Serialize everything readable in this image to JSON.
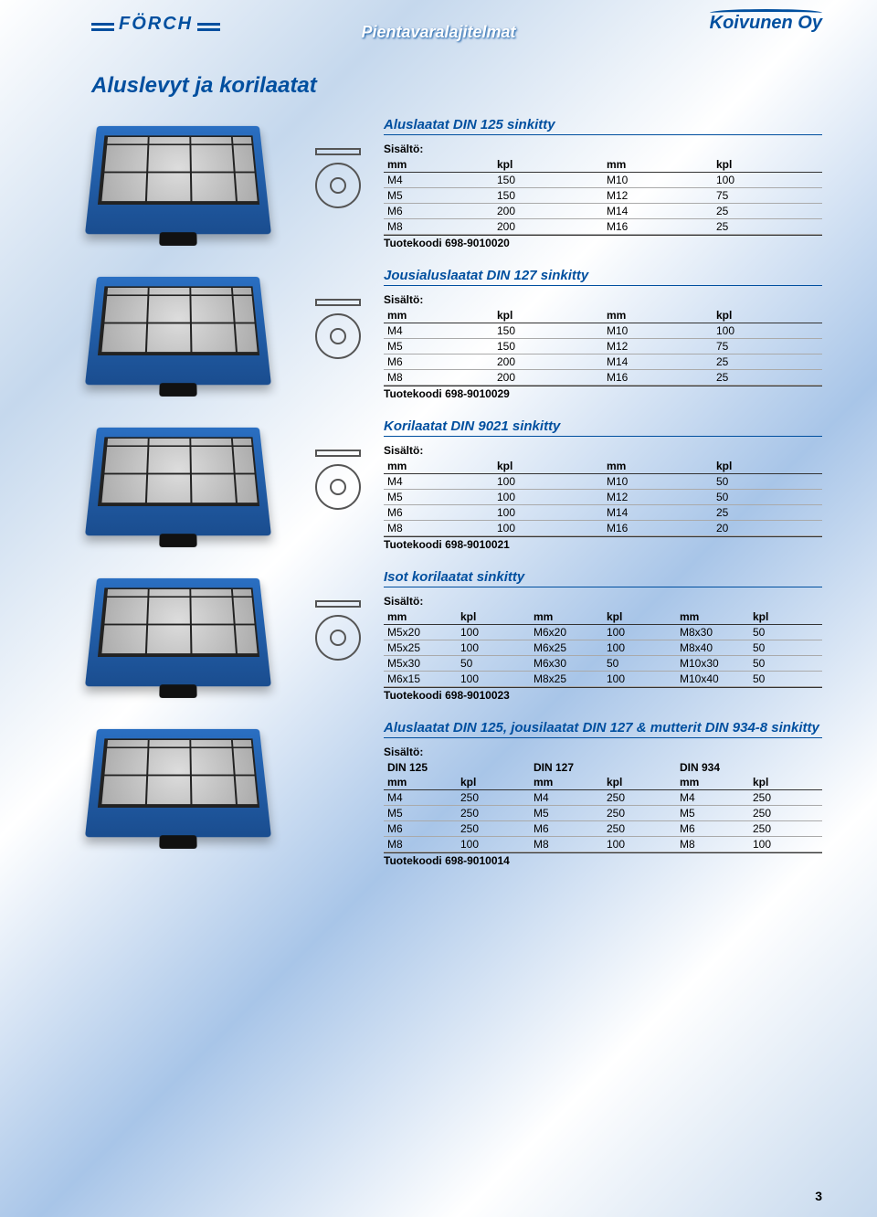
{
  "header": {
    "logo_left": "FÖRCH",
    "title": "Pientavaralajitelmat",
    "logo_right": "Koivunen Oy"
  },
  "main_title": "Aluslevyt ja korilaatat",
  "labels": {
    "sisalto": "Sisältö:",
    "mm": "mm",
    "kpl": "kpl",
    "tuotekoodi": "Tuotekoodi"
  },
  "sections": [
    {
      "title": "Aluslaatat DIN 125 sinkitty",
      "cols": 4,
      "headers": [
        "mm",
        "kpl",
        "mm",
        "kpl"
      ],
      "rows": [
        [
          "M4",
          "150",
          "M10",
          "100"
        ],
        [
          "M5",
          "150",
          "M12",
          "75"
        ],
        [
          "M6",
          "200",
          "M14",
          "25"
        ],
        [
          "M8",
          "200",
          "M16",
          "25"
        ]
      ],
      "code": "698-9010020"
    },
    {
      "title": "Jousialuslaatat DIN 127 sinkitty",
      "cols": 4,
      "headers": [
        "mm",
        "kpl",
        "mm",
        "kpl"
      ],
      "rows": [
        [
          "M4",
          "150",
          "M10",
          "100"
        ],
        [
          "M5",
          "150",
          "M12",
          "75"
        ],
        [
          "M6",
          "200",
          "M14",
          "25"
        ],
        [
          "M8",
          "200",
          "M16",
          "25"
        ]
      ],
      "code": "698-9010029"
    },
    {
      "title": "Korilaatat DIN 9021 sinkitty",
      "cols": 4,
      "headers": [
        "mm",
        "kpl",
        "mm",
        "kpl"
      ],
      "rows": [
        [
          "M4",
          "100",
          "M10",
          "50"
        ],
        [
          "M5",
          "100",
          "M12",
          "50"
        ],
        [
          "M6",
          "100",
          "M14",
          "25"
        ],
        [
          "M8",
          "100",
          "M16",
          "20"
        ]
      ],
      "code": "698-9010021"
    },
    {
      "title": "Isot korilaatat sinkitty",
      "cols": 6,
      "headers": [
        "mm",
        "kpl",
        "mm",
        "kpl",
        "mm",
        "kpl"
      ],
      "rows": [
        [
          "M5x20",
          "100",
          "M6x20",
          "100",
          "M8x30",
          "50"
        ],
        [
          "M5x25",
          "100",
          "M6x25",
          "100",
          "M8x40",
          "50"
        ],
        [
          "M5x30",
          "50",
          "M6x30",
          "50",
          "M10x30",
          "50"
        ],
        [
          "M6x15",
          "100",
          "M8x25",
          "100",
          "M10x40",
          "50"
        ]
      ],
      "code": "698-9010023"
    },
    {
      "title": "Aluslaatat DIN 125, jousilaatat DIN 127 & mutterit DIN 934-8 sinkitty",
      "cols": 6,
      "subheaders": [
        "DIN 125",
        "",
        "DIN 127",
        "",
        "DIN 934",
        ""
      ],
      "headers": [
        "mm",
        "kpl",
        "mm",
        "kpl",
        "mm",
        "kpl"
      ],
      "rows": [
        [
          "M4",
          "250",
          "M4",
          "250",
          "M4",
          "250"
        ],
        [
          "M5",
          "250",
          "M5",
          "250",
          "M5",
          "250"
        ],
        [
          "M6",
          "250",
          "M6",
          "250",
          "M6",
          "250"
        ],
        [
          "M8",
          "100",
          "M8",
          "100",
          "M8",
          "100"
        ]
      ],
      "code": "698-9010014"
    }
  ],
  "page_number": "3",
  "colors": {
    "brand_blue": "#004f9f",
    "case_blue": "#1a4d8f",
    "text": "#000000",
    "bg_light": "#ffffff",
    "bg_cloud": "#c5d8ed"
  }
}
